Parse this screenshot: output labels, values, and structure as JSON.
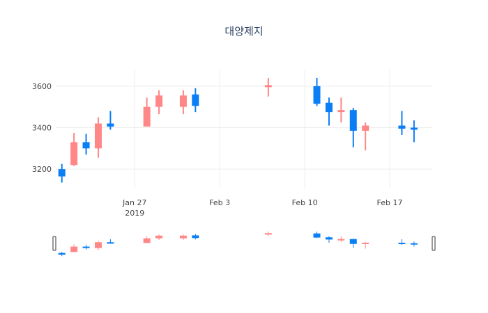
{
  "chart_data": {
    "type": "candlestick",
    "title": "대양제지",
    "y_ticks": [
      3200,
      3400,
      3600
    ],
    "x_ticks": [
      {
        "date": "2019-01-27",
        "label": "Jan 27",
        "sublabel": "2019"
      },
      {
        "date": "2019-02-03",
        "label": "Feb 3",
        "sublabel": ""
      },
      {
        "date": "2019-02-10",
        "label": "Feb 10",
        "sublabel": ""
      },
      {
        "date": "2019-02-17",
        "label": "Feb 17",
        "sublabel": ""
      }
    ],
    "x_range": [
      "2019-01-21",
      "2019-02-20"
    ],
    "y_range": [
      3110,
      3680
    ],
    "increasing_color": "#ff8787",
    "decreasing_color": "#0a7ef5",
    "rangeslider": true,
    "candles": [
      {
        "date": "2019-01-21",
        "open": 3200,
        "high": 3225,
        "low": 3135,
        "close": 3165
      },
      {
        "date": "2019-01-22",
        "open": 3220,
        "high": 3375,
        "low": 3215,
        "close": 3330
      },
      {
        "date": "2019-01-23",
        "open": 3330,
        "high": 3370,
        "low": 3270,
        "close": 3300
      },
      {
        "date": "2019-01-24",
        "open": 3300,
        "high": 3450,
        "low": 3255,
        "close": 3420
      },
      {
        "date": "2019-01-25",
        "open": 3420,
        "high": 3480,
        "low": 3390,
        "close": 3405
      },
      {
        "date": "2019-01-28",
        "open": 3405,
        "high": 3545,
        "low": 3405,
        "close": 3500
      },
      {
        "date": "2019-01-29",
        "open": 3500,
        "high": 3580,
        "low": 3465,
        "close": 3555
      },
      {
        "date": "2019-01-31",
        "open": 3500,
        "high": 3580,
        "low": 3465,
        "close": 3555
      },
      {
        "date": "2019-02-01",
        "open": 3560,
        "high": 3590,
        "low": 3475,
        "close": 3505
      },
      {
        "date": "2019-02-07",
        "open": 3595,
        "high": 3640,
        "low": 3550,
        "close": 3605
      },
      {
        "date": "2019-02-11",
        "open": 3600,
        "high": 3640,
        "low": 3505,
        "close": 3515
      },
      {
        "date": "2019-02-12",
        "open": 3520,
        "high": 3545,
        "low": 3410,
        "close": 3475
      },
      {
        "date": "2019-02-13",
        "open": 3475,
        "high": 3545,
        "low": 3425,
        "close": 3485
      },
      {
        "date": "2019-02-14",
        "open": 3485,
        "high": 3495,
        "low": 3305,
        "close": 3385
      },
      {
        "date": "2019-02-15",
        "open": 3385,
        "high": 3425,
        "low": 3290,
        "close": 3410
      },
      {
        "date": "2019-02-18",
        "open": 3410,
        "high": 3480,
        "low": 3365,
        "close": 3395
      },
      {
        "date": "2019-02-19",
        "open": 3400,
        "high": 3435,
        "low": 3330,
        "close": 3390
      }
    ]
  }
}
